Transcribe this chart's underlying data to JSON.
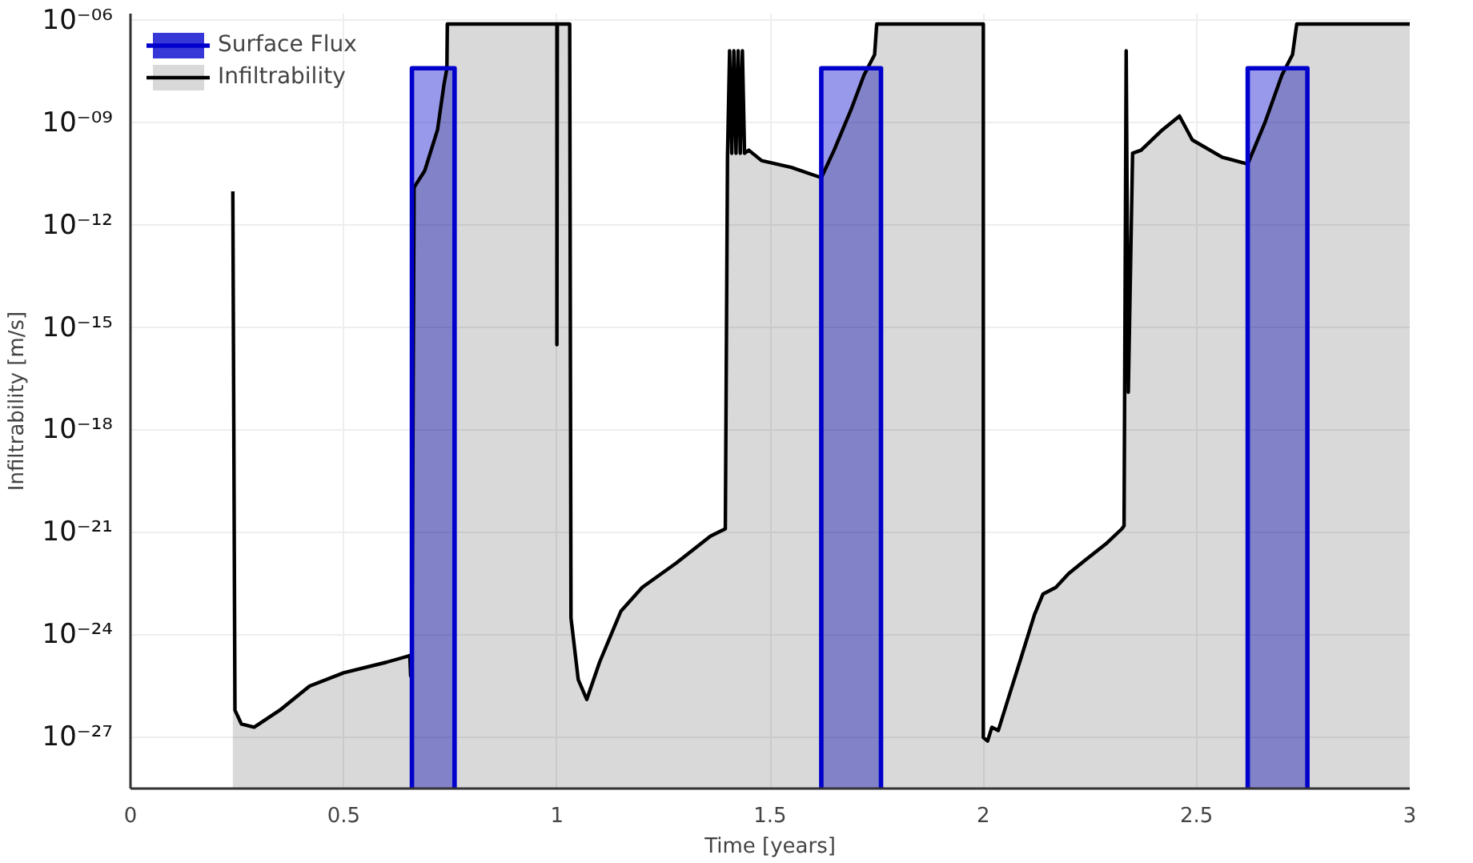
{
  "chart_data": {
    "type": "area",
    "xlabel": "Time [years]",
    "ylabel": "Infiltrability [m/s]",
    "log": "y",
    "grid": true,
    "legend": "top left",
    "xlim": [
      0,
      3
    ],
    "xticks": [
      0,
      0.5,
      1,
      1.5,
      2,
      2.5,
      3
    ],
    "ylim": [
      3.2e-29,
      1.6e-06
    ],
    "yticks": [
      {
        "value": 1e-06,
        "label": "10⁻⁰⁶"
      },
      {
        "value": 1e-09,
        "label": "10⁻⁰⁹"
      },
      {
        "value": 1e-12,
        "label": "10⁻¹²"
      },
      {
        "value": 1e-15,
        "label": "10⁻¹⁵"
      },
      {
        "value": 1e-18,
        "label": "10⁻¹⁸"
      },
      {
        "value": 1e-21,
        "label": "10⁻²¹"
      },
      {
        "value": 1e-24,
        "label": "10⁻²⁴"
      },
      {
        "value": 1e-27,
        "label": "10⁻²⁷"
      }
    ],
    "series": [
      {
        "name": "Surface Flux",
        "color": "#0000cc",
        "x": [
          0.66,
          0.76,
          1.0,
          1.62,
          1.76,
          2.0,
          2.62,
          2.76
        ],
        "values": [
          4e-08,
          4e-08,
          null,
          4e-08,
          4e-08,
          null,
          4e-08,
          4e-08
        ]
      },
      {
        "name": "Infiltrability",
        "color": "#000000",
        "x": [
          0.24,
          0.245,
          0.26,
          0.29,
          0.35,
          0.42,
          0.5,
          0.6,
          0.655,
          0.657,
          0.66,
          0.665,
          0.69,
          0.72,
          0.735,
          0.742,
          0.743,
          1.0,
          1.0,
          1.001,
          1.03,
          1.033,
          1.05,
          1.07,
          1.1,
          1.15,
          1.2,
          1.28,
          1.36,
          1.395,
          1.4,
          1.405,
          1.41,
          1.415,
          1.42,
          1.425,
          1.43,
          1.435,
          1.44,
          1.45,
          1.48,
          1.55,
          1.62,
          1.65,
          1.69,
          1.72,
          1.745,
          1.75,
          2.0,
          2.0,
          2.01,
          2.02,
          2.035,
          2.06,
          2.09,
          2.12,
          2.14,
          2.17,
          2.2,
          2.24,
          2.29,
          2.325,
          2.33,
          2.335,
          2.34,
          2.35,
          2.37,
          2.42,
          2.46,
          2.49,
          2.56,
          2.62,
          2.66,
          2.7,
          2.725,
          2.735,
          3.0
        ],
        "values": [
          1e-11,
          6.3e-27,
          2.5e-27,
          2e-27,
          6.3e-27,
          3.2e-26,
          7.9e-26,
          1.6e-25,
          2.5e-25,
          6.3e-26,
          2e-25,
          1.3e-11,
          4e-11,
          6.3e-10,
          1.3e-08,
          4e-08,
          7.9e-07,
          7.9e-07,
          3.2e-16,
          7.9e-07,
          7.9e-07,
          3.2e-24,
          5e-26,
          1.3e-26,
          1.6e-25,
          5e-24,
          2.5e-23,
          1.3e-22,
          7.9e-22,
          1.3e-21,
          1e-10,
          1.3e-07,
          1.3e-10,
          1.3e-07,
          1.3e-10,
          1.3e-07,
          1.3e-10,
          1.3e-07,
          1.3e-10,
          1.6e-10,
          7.9e-11,
          5e-11,
          2.5e-11,
          1.6e-10,
          2.5e-09,
          2.5e-08,
          1e-07,
          7.9e-07,
          7.9e-07,
          1e-27,
          7.9e-28,
          2e-27,
          1.6e-27,
          1.6e-26,
          2.5e-25,
          4e-24,
          1.6e-23,
          2.5e-23,
          6.3e-23,
          1.6e-22,
          5e-22,
          1.3e-21,
          1.6e-21,
          1.3e-07,
          1.3e-17,
          1.3e-10,
          1.6e-10,
          6.3e-10,
          1.6e-09,
          3.2e-10,
          1e-10,
          6.3e-11,
          1e-09,
          2.5e-08,
          1e-07,
          7.9e-07,
          7.9e-07
        ]
      }
    ]
  }
}
